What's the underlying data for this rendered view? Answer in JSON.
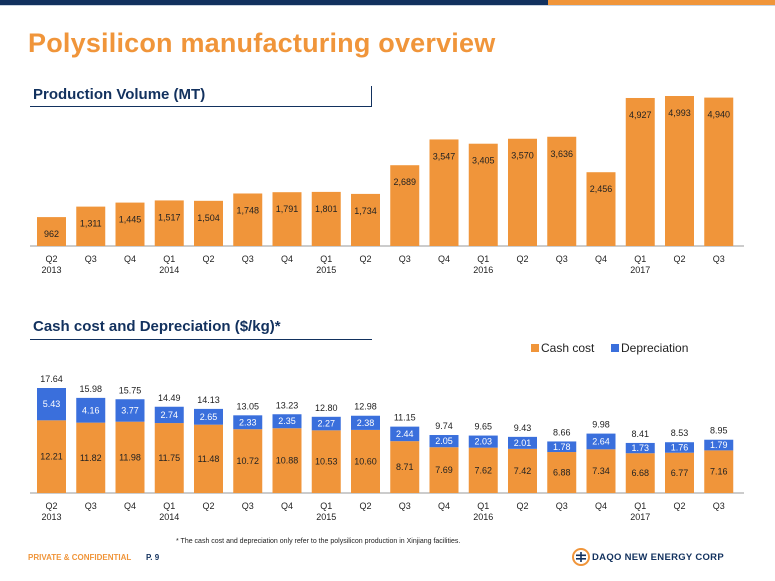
{
  "page_title": "Polysilicon manufacturing overview",
  "footer": {
    "confidential": "PRIVATE & CONFIDENTIAL",
    "page": "P. 9",
    "company": "DAQO NEW ENERGY CORP",
    "footnote": "* The cash cost and depreciation only refer to the polysilicon production in Xinjiang facilities."
  },
  "colors": {
    "orange": "#f0953a",
    "blue": "#3a6fdc",
    "navy": "#12315e"
  },
  "chart_data": [
    {
      "type": "bar",
      "title": "Production Volume (MT)",
      "categories": [
        "Q2 2013",
        "Q3",
        "Q4",
        "Q1 2014",
        "Q2",
        "Q3",
        "Q4",
        "Q1 2015",
        "Q2",
        "Q3",
        "Q4",
        "Q1 2016",
        "Q2",
        "Q3",
        "Q4",
        "Q1 2017",
        "Q2",
        "Q3"
      ],
      "tick_labels": [
        [
          "Q2",
          "2013"
        ],
        [
          "Q3"
        ],
        [
          "Q4"
        ],
        [
          "Q1",
          "2014"
        ],
        [
          "Q2"
        ],
        [
          "Q3"
        ],
        [
          "Q4"
        ],
        [
          "Q1",
          "2015"
        ],
        [
          "Q2"
        ],
        [
          "Q3"
        ],
        [
          "Q4"
        ],
        [
          "Q1",
          "2016"
        ],
        [
          "Q2"
        ],
        [
          "Q3"
        ],
        [
          "Q4"
        ],
        [
          "Q1",
          "2017"
        ],
        [
          "Q2"
        ],
        [
          "Q3"
        ]
      ],
      "values": [
        962,
        1311,
        1445,
        1517,
        1504,
        1748,
        1791,
        1801,
        1734,
        2689,
        3547,
        3405,
        3570,
        3636,
        2456,
        4927,
        4993,
        4940
      ],
      "labels": [
        "962",
        "1,311",
        "1,445",
        "1,517",
        "1,504",
        "1,748",
        "1,791",
        "1,801",
        "1,734",
        "2,689",
        "3,547",
        "3,405",
        "3,570",
        "3,636",
        "2,456",
        "4,927",
        "4,993",
        "4,940"
      ],
      "xlabel": "",
      "ylabel": "",
      "ylim": [
        0,
        5300
      ]
    },
    {
      "type": "bar",
      "stacked": true,
      "title": "Cash cost and Depreciation ($/kg)*",
      "categories": [
        "Q2 2013",
        "Q3",
        "Q4",
        "Q1 2014",
        "Q2",
        "Q3",
        "Q4",
        "Q1 2015",
        "Q2",
        "Q3",
        "Q4",
        "Q1 2016",
        "Q2",
        "Q3",
        "Q4",
        "Q1 2017",
        "Q2",
        "Q3"
      ],
      "tick_labels": [
        [
          "Q2",
          "2013"
        ],
        [
          "Q3"
        ],
        [
          "Q4"
        ],
        [
          "Q1",
          "2014"
        ],
        [
          "Q2"
        ],
        [
          "Q3"
        ],
        [
          "Q4"
        ],
        [
          "Q1",
          "2015"
        ],
        [
          "Q2"
        ],
        [
          "Q3"
        ],
        [
          "Q4"
        ],
        [
          "Q1",
          "2016"
        ],
        [
          "Q2"
        ],
        [
          "Q3"
        ],
        [
          "Q4"
        ],
        [
          "Q1",
          "2017"
        ],
        [
          "Q2"
        ],
        [
          "Q3"
        ]
      ],
      "series": [
        {
          "name": "Cash cost",
          "values": [
            12.21,
            11.82,
            11.98,
            11.75,
            11.48,
            10.72,
            10.88,
            10.53,
            10.6,
            8.71,
            7.69,
            7.62,
            7.42,
            6.88,
            7.34,
            6.68,
            6.77,
            7.16
          ],
          "labels": [
            "12.21",
            "11.82",
            "11.98",
            "11.75",
            "11.48",
            "10.72",
            "10.88",
            "10.53",
            "10.60",
            "8.71",
            "7.69",
            "7.62",
            "7.42",
            "6.88",
            "7.34",
            "6.68",
            "6.77",
            "7.16"
          ]
        },
        {
          "name": "Depreciation",
          "values": [
            5.43,
            4.16,
            3.77,
            2.74,
            2.65,
            2.33,
            2.35,
            2.27,
            2.38,
            2.44,
            2.05,
            2.03,
            2.01,
            1.78,
            2.64,
            1.73,
            1.76,
            1.79
          ],
          "labels": [
            "5.43",
            "4.16",
            "3.77",
            "2.74",
            "2.65",
            "2.33",
            "2.35",
            "2.27",
            "2.38",
            "2.44",
            "2.05",
            "2.03",
            "2.01",
            "1.78",
            "2.64",
            "1.73",
            "1.76",
            "1.79"
          ]
        }
      ],
      "totals": [
        "17.64",
        "15.98",
        "15.75",
        "14.49",
        "14.13",
        "13.05",
        "13.23",
        "12.80",
        "12.98",
        "11.15",
        "9.74",
        "9.65",
        "9.43",
        "8.66",
        "9.98",
        "8.41",
        "8.53",
        "8.95"
      ],
      "legend": "top-right",
      "xlabel": "",
      "ylabel": "",
      "ylim": [
        0,
        19
      ]
    }
  ]
}
